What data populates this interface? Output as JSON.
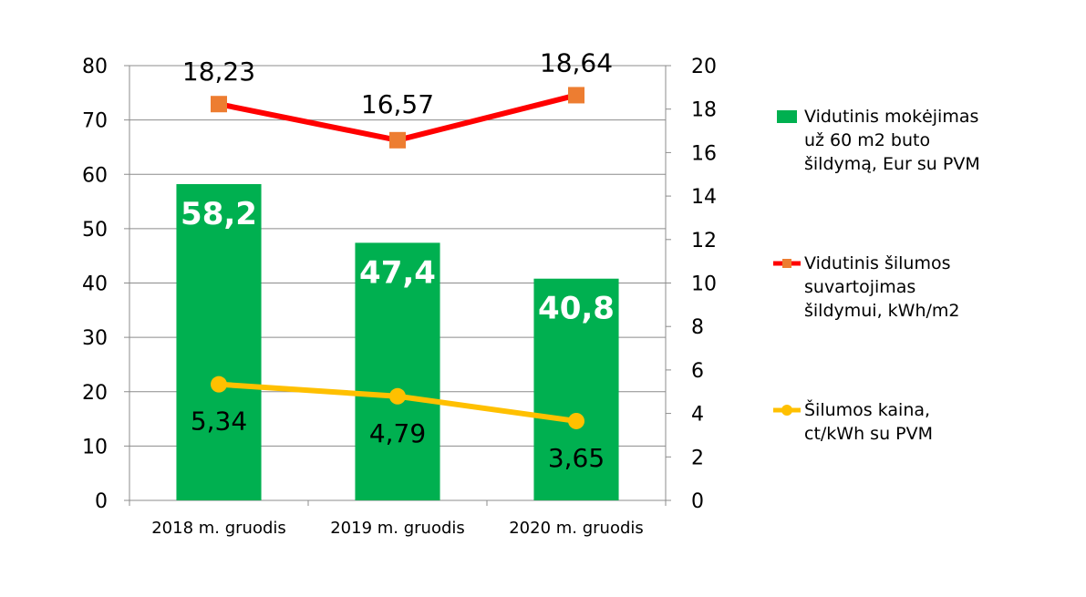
{
  "chart_data": {
    "type": "bar",
    "categories": [
      "2018 m. gruodis",
      "2019 m. gruodis",
      "2020 m. gruodis"
    ],
    "left_axis": {
      "min": 0,
      "max": 80,
      "step": 10
    },
    "right_axis": {
      "min": 0,
      "max": 20,
      "step": 2
    },
    "grid": true,
    "series": [
      {
        "name": "Vidutinis mokėjimas už 60 m2 buto šildymą, Eur su PVM",
        "legend_lines": [
          "Vidutinis mokėjimas",
          "už 60 m2 buto",
          "šildymą, Eur su PVM"
        ],
        "kind": "bar",
        "axis": "left",
        "color": "#00b050",
        "values": [
          58.2,
          47.4,
          40.8
        ],
        "labels": [
          "58,2",
          "47,4",
          "40,8"
        ]
      },
      {
        "name": "Vidutinis šilumos suvartojimas šildymui, kWh/m2",
        "legend_lines": [
          "Vidutinis šilumos",
          "suvartojimas",
          "šildymui, kWh/m2"
        ],
        "kind": "line",
        "marker": "square",
        "axis": "right",
        "color": "#ff0000",
        "marker_color": "#ed7d31",
        "values": [
          18.23,
          16.57,
          18.64
        ],
        "labels": [
          "18,23",
          "16,57",
          "18,64"
        ]
      },
      {
        "name": "Šilumos kaina, ct/kWh su PVM",
        "legend_lines": [
          "Šilumos kaina,",
          "ct/kWh su PVM"
        ],
        "kind": "line",
        "marker": "circle",
        "axis": "right",
        "color": "#ffc000",
        "marker_color": "#ffc000",
        "values": [
          5.34,
          4.79,
          3.65
        ],
        "labels": [
          "5,34",
          "4,79",
          "3,65"
        ]
      }
    ],
    "legend_position": "right"
  }
}
